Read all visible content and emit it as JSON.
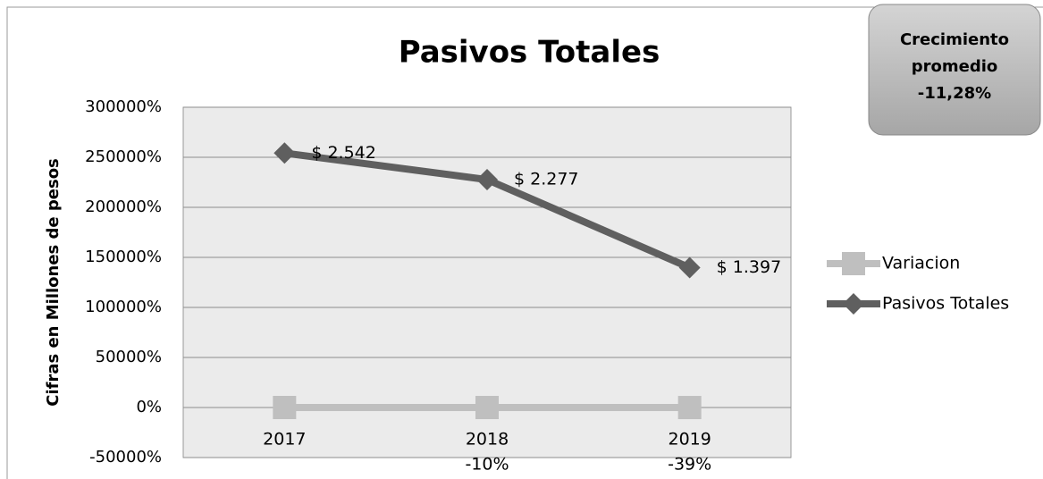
{
  "chart_data": {
    "type": "line",
    "title": "Pasivos Totales",
    "ylabel": "Cifras en Millones de pesos",
    "categories": [
      "2017",
      "2018",
      "2019"
    ],
    "series": [
      {
        "name": "Variacion",
        "color": "#bfbfbf",
        "marker": "square",
        "values": [
          0,
          -10,
          -39
        ],
        "value_labels": [
          null,
          "-10%",
          "-39%"
        ]
      },
      {
        "name": "Pasivos Totales",
        "color": "#5f5f5f",
        "marker": "diamond",
        "values": [
          254200,
          227700,
          139700
        ],
        "value_labels": [
          "$ 2.542",
          "$ 2.277",
          "$ 1.397"
        ]
      }
    ],
    "ylim": [
      -50000,
      300000
    ],
    "yticks": [
      {
        "value": -50000,
        "label": "-50000%"
      },
      {
        "value": 0,
        "label": "0%"
      },
      {
        "value": 50000,
        "label": "50000%"
      },
      {
        "value": 100000,
        "label": "100000%"
      },
      {
        "value": 150000,
        "label": "150000%"
      },
      {
        "value": 200000,
        "label": "200000%"
      },
      {
        "value": 250000,
        "label": "250000%"
      },
      {
        "value": 300000,
        "label": "300000%"
      }
    ],
    "grid": true,
    "legend": "right",
    "annotation": [
      "Crecimiento",
      "promedio",
      "-11,28%"
    ]
  }
}
